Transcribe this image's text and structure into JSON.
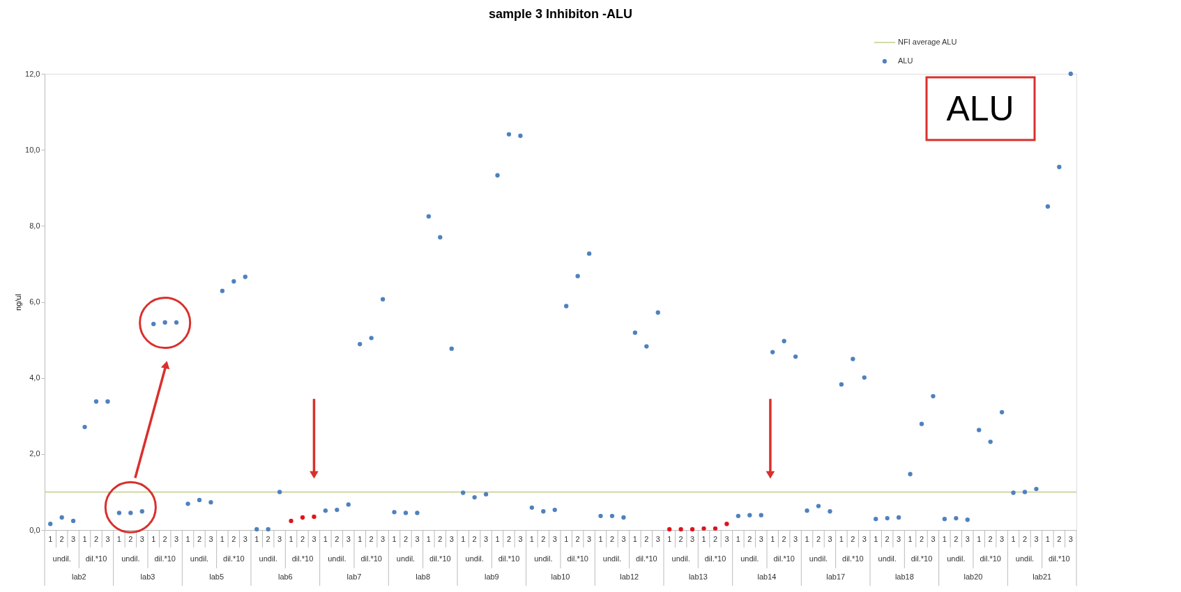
{
  "chart_data": {
    "type": "scatter",
    "title": "sample 3 Inhibiton -ALU",
    "ylabel": "ng/ul",
    "categories": [
      "1",
      "2",
      "3",
      "1",
      "2",
      "3",
      "1",
      "2",
      "3",
      "1",
      "2",
      "3",
      "1",
      "2",
      "3",
      "1",
      "2",
      "3",
      "1",
      "2",
      "3",
      "1",
      "2",
      "3",
      "1",
      "2",
      "3",
      "1",
      "2",
      "3",
      "1",
      "2",
      "3",
      "1",
      "2",
      "3",
      "1",
      "2",
      "3",
      "1",
      "2",
      "3",
      "1",
      "2",
      "3",
      "1",
      "2",
      "3",
      "1",
      "2",
      "3",
      "1",
      "2",
      "3",
      "1",
      "2",
      "3",
      "1",
      "2",
      "3",
      "1",
      "2",
      "3",
      "1",
      "2",
      "3",
      "1",
      "2",
      "3",
      "1",
      "2",
      "3",
      "1",
      "2",
      "3",
      "1",
      "2",
      "3",
      "1",
      "2",
      "3",
      "1",
      "2",
      "3",
      "1",
      "2",
      "3",
      "1",
      "2",
      "3"
    ],
    "series": [
      {
        "name": "ALU",
        "color": "#4f81bd",
        "values": [
          0.16,
          0.33,
          0.24,
          2.71,
          3.38,
          3.38,
          0.45,
          0.45,
          0.49,
          5.42,
          5.46,
          5.46,
          0.69,
          0.79,
          0.73,
          6.29,
          6.54,
          6.66,
          0.02,
          0.02,
          1.0,
          0.24,
          0.33,
          0.35,
          0.51,
          0.53,
          0.67,
          4.89,
          5.05,
          6.07,
          0.47,
          0.45,
          0.45,
          8.25,
          7.7,
          4.77,
          0.98,
          0.86,
          0.94,
          9.33,
          10.41,
          10.37,
          0.59,
          0.49,
          0.53,
          5.89,
          6.68,
          7.27,
          0.37,
          0.37,
          0.33,
          5.19,
          4.83,
          5.72,
          0.02,
          0.02,
          0.02,
          0.04,
          0.04,
          0.16,
          0.37,
          0.39,
          0.39,
          4.68,
          4.97,
          4.56,
          0.51,
          0.63,
          0.49,
          3.83,
          4.5,
          4.01,
          0.29,
          0.31,
          0.33,
          1.47,
          2.79,
          3.52,
          0.29,
          0.31,
          0.27,
          2.63,
          2.32,
          3.1,
          0.98,
          1.0,
          1.08,
          8.51,
          9.55,
          12.0
        ],
        "colors": [
          "#4f81bd",
          "#4f81bd",
          "#4f81bd",
          "#4f81bd",
          "#4f81bd",
          "#4f81bd",
          "#4f81bd",
          "#4f81bd",
          "#4f81bd",
          "#4f81bd",
          "#4f81bd",
          "#4f81bd",
          "#4f81bd",
          "#4f81bd",
          "#4f81bd",
          "#4f81bd",
          "#4f81bd",
          "#4f81bd",
          "#4f81bd",
          "#4f81bd",
          "#4f81bd",
          "#e0141e",
          "#e0141e",
          "#e0141e",
          "#4f81bd",
          "#4f81bd",
          "#4f81bd",
          "#4f81bd",
          "#4f81bd",
          "#4f81bd",
          "#4f81bd",
          "#4f81bd",
          "#4f81bd",
          "#4f81bd",
          "#4f81bd",
          "#4f81bd",
          "#4f81bd",
          "#4f81bd",
          "#4f81bd",
          "#4f81bd",
          "#4f81bd",
          "#4f81bd",
          "#4f81bd",
          "#4f81bd",
          "#4f81bd",
          "#4f81bd",
          "#4f81bd",
          "#4f81bd",
          "#4f81bd",
          "#4f81bd",
          "#4f81bd",
          "#4f81bd",
          "#4f81bd",
          "#4f81bd",
          "#e0141e",
          "#e0141e",
          "#e0141e",
          "#e0141e",
          "#e0141e",
          "#e0141e",
          "#4f81bd",
          "#4f81bd",
          "#4f81bd",
          "#4f81bd",
          "#4f81bd",
          "#4f81bd",
          "#4f81bd",
          "#4f81bd",
          "#4f81bd",
          "#4f81bd",
          "#4f81bd",
          "#4f81bd",
          "#4f81bd",
          "#4f81bd",
          "#4f81bd",
          "#4f81bd",
          "#4f81bd",
          "#4f81bd",
          "#4f81bd",
          "#4f81bd",
          "#4f81bd",
          "#4f81bd",
          "#4f81bd",
          "#4f81bd",
          "#4f81bd",
          "#4f81bd",
          "#4f81bd",
          "#4f81bd",
          "#4f81bd",
          "#4f81bd"
        ]
      }
    ],
    "ylim": [
      0,
      12
    ],
    "yticks": [
      {
        "value": 0,
        "label": "0,0"
      },
      {
        "value": 2,
        "label": "2,0"
      },
      {
        "value": 4,
        "label": "4,0"
      },
      {
        "value": 6,
        "label": "6,0"
      },
      {
        "value": 8,
        "label": "8,0"
      },
      {
        "value": 10,
        "label": "10,0"
      },
      {
        "value": 12,
        "label": "12,0"
      }
    ],
    "ref_lines": [
      {
        "axis": "y",
        "value": 1.0,
        "label": "NFI average ALU",
        "color": "#c4cb8a"
      }
    ],
    "annotations": [
      "ALU",
      "undil.",
      "dil.*10",
      "undil.",
      "dil.*10",
      "undil.",
      "dil.*10",
      "undil.",
      "dil.*10",
      "undil.",
      "dil.*10",
      "undil.",
      "dil.*10",
      "undil.",
      "dil.*10",
      "undil.",
      "dil.*10",
      "undil.",
      "dil.*10",
      "undil.",
      "dil.*10",
      "undil.",
      "dil.*10",
      "undil.",
      "dil.*10",
      "undil.",
      "dil.*10",
      "undil.",
      "dil.*10",
      "undil.",
      "dil.*10",
      "lab2",
      "lab3",
      "lab5",
      "lab6",
      "lab7",
      "lab8",
      "lab9",
      "lab10",
      "lab12",
      "lab13",
      "lab14",
      "lab17",
      "lab18",
      "lab20",
      "lab21"
    ],
    "legend": "top right",
    "grid": false,
    "marker": "circle"
  }
}
